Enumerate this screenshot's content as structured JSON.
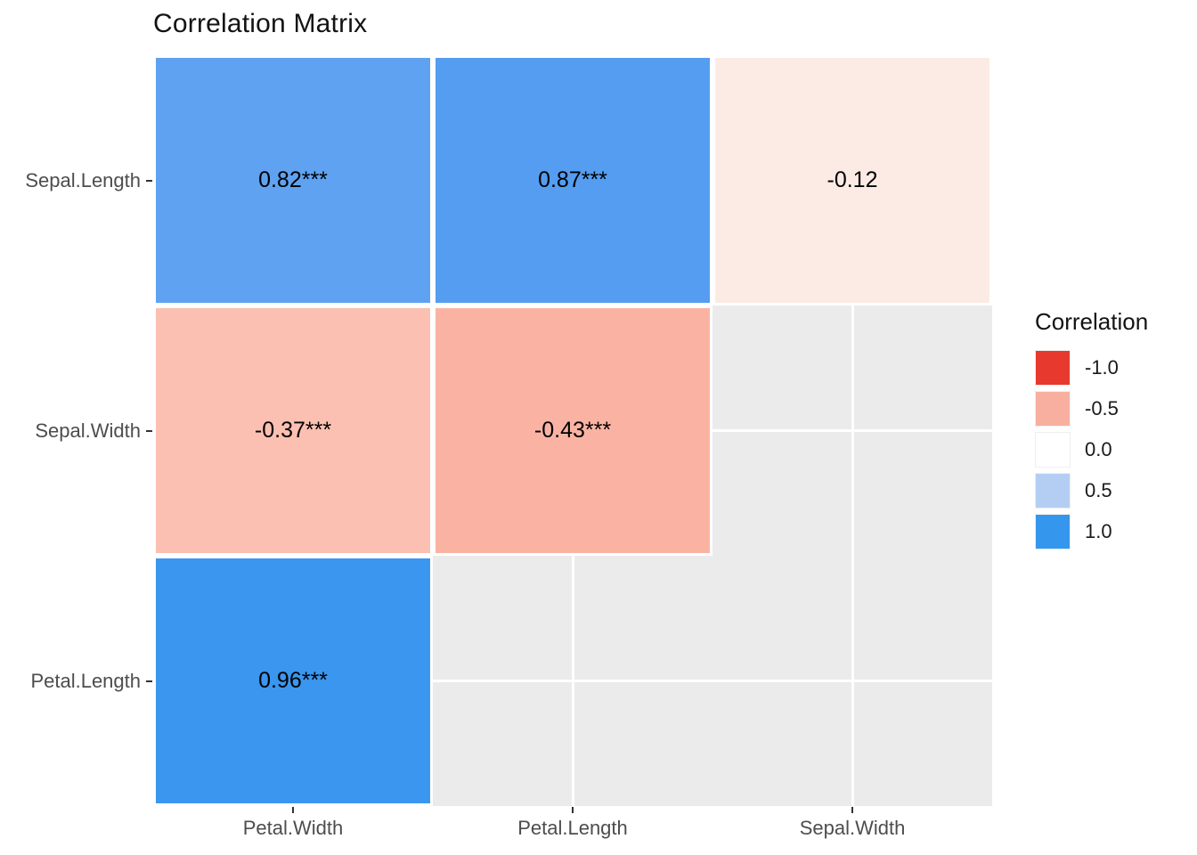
{
  "title": "Correlation Matrix",
  "legend": {
    "title": "Correlation",
    "keys": [
      {
        "label": "-1.0",
        "color": "#E8392E"
      },
      {
        "label": "-0.5",
        "color": "#F9AFA0"
      },
      {
        "label": "0.0",
        "color": "#FFFFFF"
      },
      {
        "label": "0.5",
        "color": "#B4CEF3"
      },
      {
        "label": "1.0",
        "color": "#3496ED"
      }
    ]
  },
  "chart_data": {
    "type": "heatmap",
    "title": "Correlation Matrix",
    "x_categories": [
      "Petal.Width",
      "Petal.Length",
      "Sepal.Width"
    ],
    "y_categories": [
      "Sepal.Length",
      "Sepal.Width",
      "Petal.Length"
    ],
    "legend_title": "Correlation",
    "legend_position": "right",
    "scale": {
      "domain": [
        -1.0,
        0.0,
        1.0
      ],
      "ticks": [
        -1.0,
        -0.5,
        0.0,
        0.5,
        1.0
      ],
      "colors": [
        "#E8392E",
        "#FFFFFF",
        "#3496ED"
      ]
    },
    "panel_bg": "#EBEBEB",
    "gridline_color": "#FFFFFF",
    "grid": true,
    "cells": [
      {
        "row": "Sepal.Length",
        "col": "Petal.Width",
        "value": 0.82,
        "label": "0.82***",
        "color": "#5FA2F1"
      },
      {
        "row": "Sepal.Length",
        "col": "Petal.Length",
        "value": 0.87,
        "label": "0.87***",
        "color": "#549DF0"
      },
      {
        "row": "Sepal.Length",
        "col": "Sepal.Width",
        "value": -0.12,
        "label": "-0.12",
        "color": "#FCEBE5"
      },
      {
        "row": "Sepal.Width",
        "col": "Petal.Width",
        "value": -0.37,
        "label": "-0.37***",
        "color": "#FBC0B1"
      },
      {
        "row": "Sepal.Width",
        "col": "Petal.Length",
        "value": -0.43,
        "label": "-0.43***",
        "color": "#FAB3A3"
      },
      {
        "row": "Petal.Length",
        "col": "Petal.Width",
        "value": 0.96,
        "label": "0.96***",
        "color": "#3A96EF"
      }
    ]
  }
}
